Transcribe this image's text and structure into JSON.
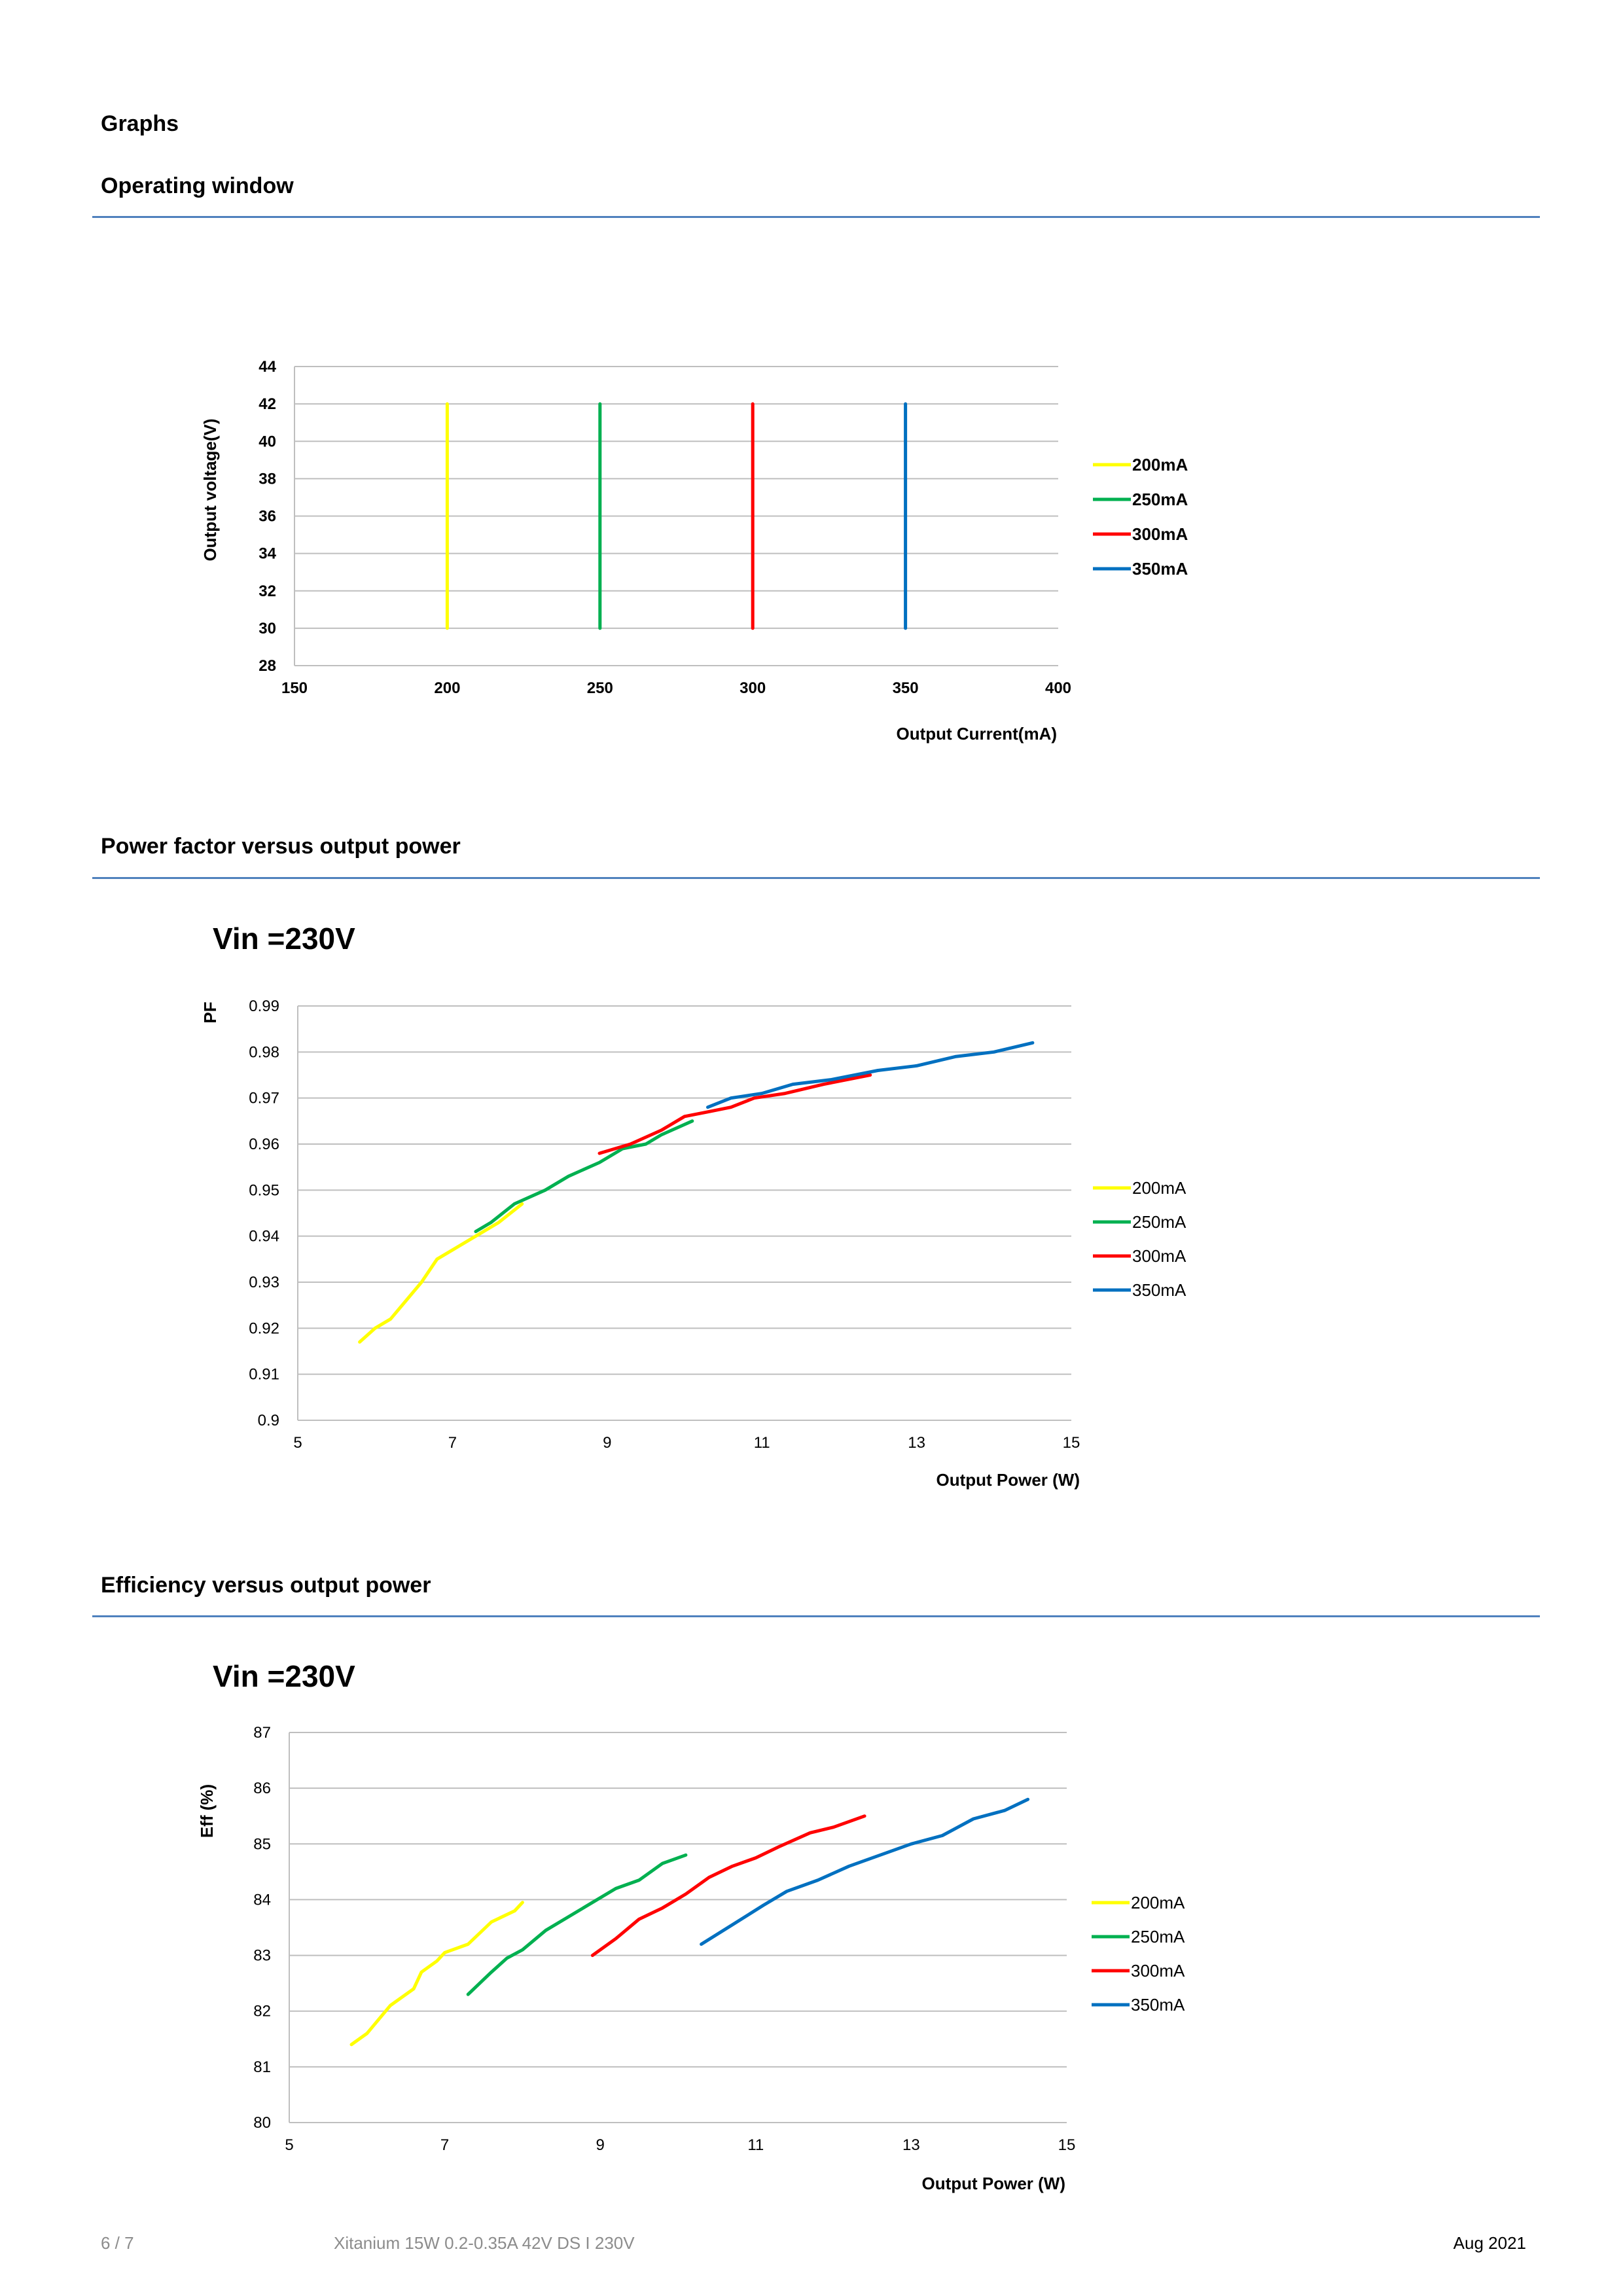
{
  "page": {
    "section_title": "Graphs",
    "footer": {
      "page_number": "6 / 7",
      "document_title": "Xitanium 15W 0.2-0.35A 42V DS I 230V",
      "date": "Aug 2021"
    }
  },
  "sections": [
    {
      "heading": "Operating window"
    },
    {
      "heading": "Power factor versus output power"
    },
    {
      "heading": "Efficiency versus output power"
    }
  ],
  "colors": {
    "200mA": "#ffff00",
    "250mA": "#00b050",
    "300mA": "#ff0000",
    "350mA": "#0070c0",
    "grid": "#bfbfbf",
    "rule": "#4f81bd"
  },
  "chart_data": [
    {
      "type": "line",
      "title": "",
      "xlabel": "Output Current(mA)",
      "ylabel": "Output voltage(V)",
      "xlim": [
        150,
        400
      ],
      "ylim": [
        28,
        44
      ],
      "xticks": [
        150,
        200,
        250,
        300,
        350,
        400
      ],
      "yticks": [
        28,
        30,
        32,
        34,
        36,
        38,
        40,
        42,
        44
      ],
      "grid": true,
      "legend": "right",
      "series": [
        {
          "name": "200mA",
          "color": "#ffff00",
          "points": [
            [
              200,
              30
            ],
            [
              200,
              42
            ]
          ]
        },
        {
          "name": "250mA",
          "color": "#00b050",
          "points": [
            [
              250,
              30
            ],
            [
              250,
              42
            ]
          ]
        },
        {
          "name": "300mA",
          "color": "#ff0000",
          "points": [
            [
              300,
              30
            ],
            [
              300,
              42
            ]
          ]
        },
        {
          "name": "350mA",
          "color": "#0070c0",
          "points": [
            [
              350,
              30
            ],
            [
              350,
              42
            ]
          ]
        }
      ]
    },
    {
      "type": "line",
      "title": "Vin =230V",
      "xlabel": "Output Power (W)",
      "ylabel": "PF",
      "xlim": [
        5,
        15
      ],
      "ylim": [
        0.9,
        0.99
      ],
      "xticks": [
        5,
        7,
        9,
        11,
        13,
        15
      ],
      "yticks": [
        0.9,
        0.91,
        0.92,
        0.93,
        0.94,
        0.95,
        0.96,
        0.97,
        0.98,
        0.99
      ],
      "grid": true,
      "legend": "right",
      "series": [
        {
          "name": "200mA",
          "color": "#ffff00",
          "points": [
            [
              5.8,
              0.917
            ],
            [
              6.0,
              0.92
            ],
            [
              6.2,
              0.922
            ],
            [
              6.4,
              0.926
            ],
            [
              6.6,
              0.93
            ],
            [
              6.8,
              0.935
            ],
            [
              7.0,
              0.937
            ],
            [
              7.3,
              0.94
            ],
            [
              7.6,
              0.943
            ],
            [
              7.9,
              0.947
            ]
          ]
        },
        {
          "name": "250mA",
          "color": "#00b050",
          "points": [
            [
              7.3,
              0.941
            ],
            [
              7.5,
              0.943
            ],
            [
              7.8,
              0.947
            ],
            [
              8.2,
              0.95
            ],
            [
              8.5,
              0.953
            ],
            [
              8.9,
              0.956
            ],
            [
              9.2,
              0.959
            ],
            [
              9.5,
              0.96
            ],
            [
              9.7,
              0.962
            ],
            [
              10.1,
              0.965
            ]
          ]
        },
        {
          "name": "300mA",
          "color": "#ff0000",
          "points": [
            [
              8.9,
              0.958
            ],
            [
              9.3,
              0.96
            ],
            [
              9.7,
              0.963
            ],
            [
              10.0,
              0.966
            ],
            [
              10.3,
              0.967
            ],
            [
              10.6,
              0.968
            ],
            [
              10.9,
              0.97
            ],
            [
              11.3,
              0.971
            ],
            [
              11.8,
              0.973
            ],
            [
              12.4,
              0.975
            ]
          ]
        },
        {
          "name": "350mA",
          "color": "#0070c0",
          "points": [
            [
              10.3,
              0.968
            ],
            [
              10.6,
              0.97
            ],
            [
              11.0,
              0.971
            ],
            [
              11.4,
              0.973
            ],
            [
              11.9,
              0.974
            ],
            [
              12.5,
              0.976
            ],
            [
              13.0,
              0.977
            ],
            [
              13.5,
              0.979
            ],
            [
              14.0,
              0.98
            ],
            [
              14.5,
              0.982
            ]
          ]
        }
      ]
    },
    {
      "type": "line",
      "title": "Vin =230V",
      "xlabel": "Output Power (W)",
      "ylabel": "Eff  (%)",
      "xlim": [
        5,
        15
      ],
      "ylim": [
        80,
        87
      ],
      "xticks": [
        5,
        7,
        9,
        11,
        13,
        15
      ],
      "yticks": [
        80,
        81,
        82,
        83,
        84,
        85,
        86,
        87
      ],
      "grid": true,
      "legend": "right",
      "series": [
        {
          "name": "200mA",
          "color": "#ffff00",
          "points": [
            [
              5.8,
              81.4
            ],
            [
              6.0,
              81.6
            ],
            [
              6.3,
              82.1
            ],
            [
              6.6,
              82.4
            ],
            [
              6.7,
              82.7
            ],
            [
              6.9,
              82.9
            ],
            [
              7.0,
              83.05
            ],
            [
              7.3,
              83.2
            ],
            [
              7.6,
              83.6
            ],
            [
              7.9,
              83.8
            ],
            [
              8.0,
              83.95
            ]
          ]
        },
        {
          "name": "250mA",
          "color": "#00b050",
          "points": [
            [
              7.3,
              82.3
            ],
            [
              7.6,
              82.7
            ],
            [
              7.8,
              82.95
            ],
            [
              8.0,
              83.1
            ],
            [
              8.3,
              83.45
            ],
            [
              8.6,
              83.7
            ],
            [
              8.9,
              83.95
            ],
            [
              9.2,
              84.2
            ],
            [
              9.5,
              84.35
            ],
            [
              9.8,
              84.65
            ],
            [
              10.1,
              84.8
            ]
          ]
        },
        {
          "name": "300mA",
          "color": "#ff0000",
          "points": [
            [
              8.9,
              83.0
            ],
            [
              9.2,
              83.3
            ],
            [
              9.5,
              83.65
            ],
            [
              9.8,
              83.85
            ],
            [
              10.1,
              84.1
            ],
            [
              10.4,
              84.4
            ],
            [
              10.7,
              84.6
            ],
            [
              11.0,
              84.75
            ],
            [
              11.3,
              84.95
            ],
            [
              11.7,
              85.2
            ],
            [
              12.0,
              85.3
            ],
            [
              12.4,
              85.5
            ]
          ]
        },
        {
          "name": "350mA",
          "color": "#0070c0",
          "points": [
            [
              10.3,
              83.2
            ],
            [
              10.7,
              83.55
            ],
            [
              11.1,
              83.9
            ],
            [
              11.4,
              84.15
            ],
            [
              11.8,
              84.35
            ],
            [
              12.2,
              84.6
            ],
            [
              12.6,
              84.8
            ],
            [
              13.0,
              85.0
            ],
            [
              13.4,
              85.15
            ],
            [
              13.8,
              85.45
            ],
            [
              14.2,
              85.6
            ],
            [
              14.5,
              85.8
            ]
          ]
        }
      ]
    }
  ]
}
